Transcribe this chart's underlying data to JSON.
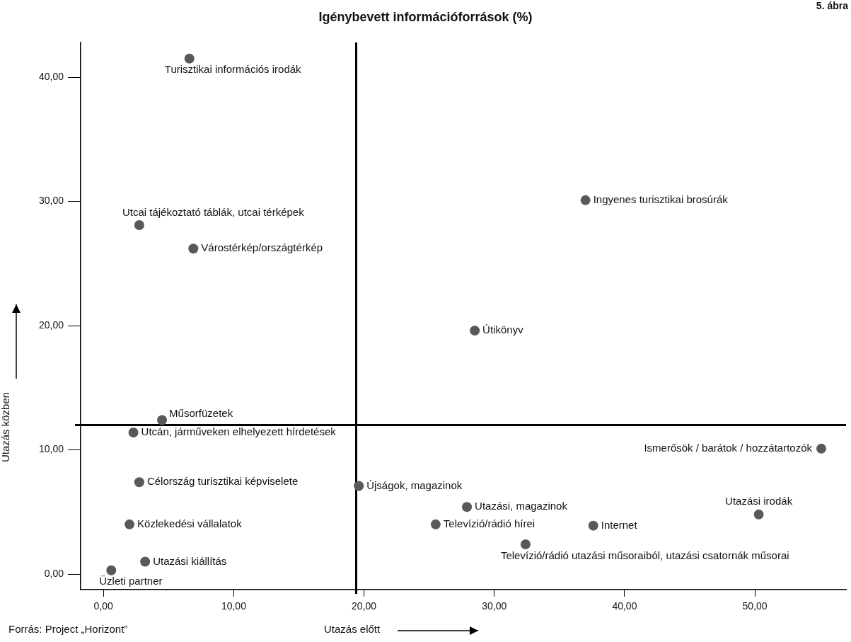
{
  "chart_data": {
    "type": "scatter",
    "title": "Igénybevett információforrások (%)",
    "xlabel": "Utazás előtt",
    "ylabel": "Utazás közben",
    "marker": "circle",
    "grid": false,
    "legend": false,
    "xlim": [
      -1.75,
      57
    ],
    "ylim": [
      -1.25,
      42.8
    ],
    "xticks": [
      {
        "value": 0,
        "label": "0,00"
      },
      {
        "value": 10,
        "label": "10,00"
      },
      {
        "value": 20,
        "label": "20,00"
      },
      {
        "value": 30,
        "label": "30,00"
      },
      {
        "value": 40,
        "label": "40,00"
      },
      {
        "value": 50,
        "label": "50,00"
      }
    ],
    "yticks": [
      {
        "value": 0,
        "label": "0,00"
      },
      {
        "value": 10,
        "label": "10,00"
      },
      {
        "value": 20,
        "label": "20,00"
      },
      {
        "value": 30,
        "label": "30,00"
      },
      {
        "value": 40,
        "label": "40,00"
      }
    ],
    "ref_lines": [
      {
        "axis": "x",
        "value": 19.4,
        "color": "#000000"
      },
      {
        "axis": "y",
        "value": 12,
        "color": "#000000"
      }
    ],
    "series": [
      {
        "color": "#595959",
        "x": [
          6.6,
          2.75,
          6.9,
          37.0,
          28.5,
          4.5,
          2.3,
          2.75,
          19.6,
          2.0,
          3.2,
          0.6,
          55.1,
          27.9,
          25.5,
          37.6,
          50.3,
          32.4
        ],
        "values": [
          41.5,
          28.1,
          26.2,
          30.1,
          19.6,
          12.4,
          11.4,
          7.4,
          7.1,
          4.0,
          1.0,
          0.3,
          10.1,
          5.4,
          4.0,
          3.9,
          4.8,
          2.4
        ]
      }
    ],
    "annotations": [
      {
        "text": "Turisztikai információs irodák",
        "x": 6.6,
        "y": 41.5
      },
      {
        "text": "Utcai tájékoztató táblák, utcai térképek",
        "x": 2.75,
        "y": 28.1
      },
      {
        "text": "Várostérkép/országtérkép",
        "x": 6.9,
        "y": 26.2
      },
      {
        "text": "Ingyenes turisztikai brosúrák",
        "x": 37.0,
        "y": 30.1
      },
      {
        "text": "Útikönyv",
        "x": 28.5,
        "y": 19.6
      },
      {
        "text": "Műsorfüzetek",
        "x": 4.5,
        "y": 12.4
      },
      {
        "text": "Utcán, járműveken elhelyezett hírdetések",
        "x": 2.3,
        "y": 11.4
      },
      {
        "text": "Célország turisztikai képviselete",
        "x": 2.75,
        "y": 7.4
      },
      {
        "text": "Újságok, magazinok",
        "x": 19.6,
        "y": 7.1
      },
      {
        "text": "Közlekedési vállalatok",
        "x": 2.0,
        "y": 4.0
      },
      {
        "text": "Utazási kiállítás",
        "x": 3.2,
        "y": 1.0
      },
      {
        "text": "Üzleti partner",
        "x": 0.6,
        "y": 0.3
      },
      {
        "text": "Ismerősök / barátok / hozzátartozók",
        "x": 55.1,
        "y": 10.1
      },
      {
        "text": "Utazási, magazinok",
        "x": 27.9,
        "y": 5.4
      },
      {
        "text": "Televízió/rádió hírei",
        "x": 25.5,
        "y": 4.0
      },
      {
        "text": "Internet",
        "x": 37.6,
        "y": 3.9
      },
      {
        "text": "Utazási irodák",
        "x": 50.3,
        "y": 4.8
      },
      {
        "text": "Televízió/rádió utazási műsoraiból, utazási csatornák műsorai",
        "x": 32.4,
        "y": 2.4
      },
      "Forrás: Project „Horizont”",
      "5. ábra"
    ]
  }
}
